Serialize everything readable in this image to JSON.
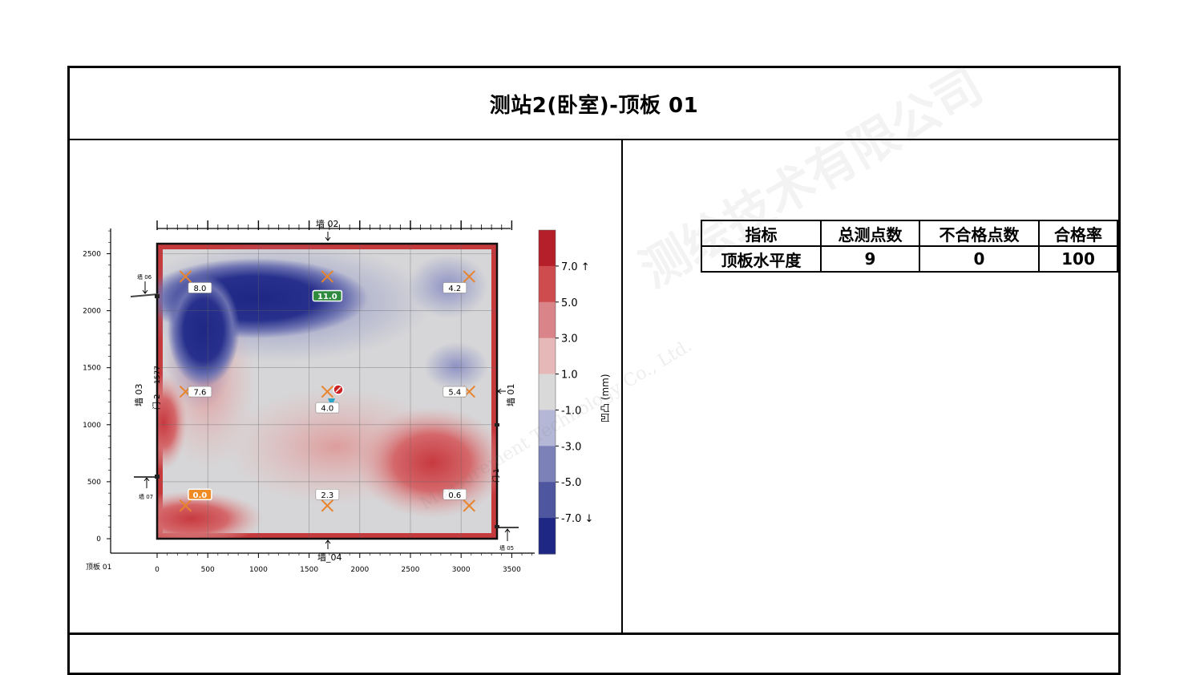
{
  "page": {
    "title": "测站2(卧室)-顶板 01"
  },
  "plot": {
    "corner_label": "顶板 01",
    "x_ticks": [
      "0",
      "500",
      "1000",
      "1500",
      "2000",
      "2500",
      "3000",
      "3500"
    ],
    "y_ticks": [
      "0",
      "500",
      "1000",
      "1500",
      "2000",
      "2500"
    ],
    "wall_labels": {
      "top": "墙 02",
      "bottom": "墙_04",
      "left": "墙 03",
      "right": "墙 01",
      "w05": "墙 05",
      "w06": "墙 06",
      "w07": "墙 07"
    },
    "door_labels": {
      "left": "门 2",
      "left_width": "1577",
      "right": "门 1"
    },
    "colorbar": {
      "label": "凹凸 (mm)",
      "ticks": [
        "7.0 ↑",
        "5.0",
        "3.0",
        "1.0",
        "-1.0",
        "-3.0",
        "-5.0",
        "-7.0 ↓"
      ],
      "colors": [
        "#b51f2a",
        "#cf4c4e",
        "#d98488",
        "#e6b9b8",
        "#d9d9d9",
        "#b4b8d6",
        "#7c82b8",
        "#4f56a0",
        "#1e2884"
      ]
    },
    "points": [
      {
        "label": "8.0",
        "x": 280,
        "y": 2300,
        "style": "plain"
      },
      {
        "label": "11.0",
        "x": 1680,
        "y": 2300,
        "style": "max"
      },
      {
        "label": "4.2",
        "x": 3080,
        "y": 2300,
        "style": "plain"
      },
      {
        "label": "7.6",
        "x": 280,
        "y": 1290,
        "style": "plain"
      },
      {
        "label": "4.0",
        "x": 1680,
        "y": 1290,
        "style": "plain"
      },
      {
        "label": "5.4",
        "x": 3080,
        "y": 1290,
        "style": "plain"
      },
      {
        "label": "0.0",
        "x": 280,
        "y": 290,
        "style": "min"
      },
      {
        "label": "2.3",
        "x": 1680,
        "y": 290,
        "style": "plain"
      },
      {
        "label": "0.6",
        "x": 3080,
        "y": 290,
        "style": "plain"
      }
    ],
    "colors": {
      "marker": "#e8842c",
      "max_badge": "#2e8b3d",
      "min_badge": "#f08a24"
    }
  },
  "table": {
    "headers": [
      "指标",
      "总测点数",
      "不合格点数",
      "合格率"
    ],
    "rows": [
      [
        "顶板水平度",
        "9",
        "0",
        "100"
      ]
    ]
  }
}
